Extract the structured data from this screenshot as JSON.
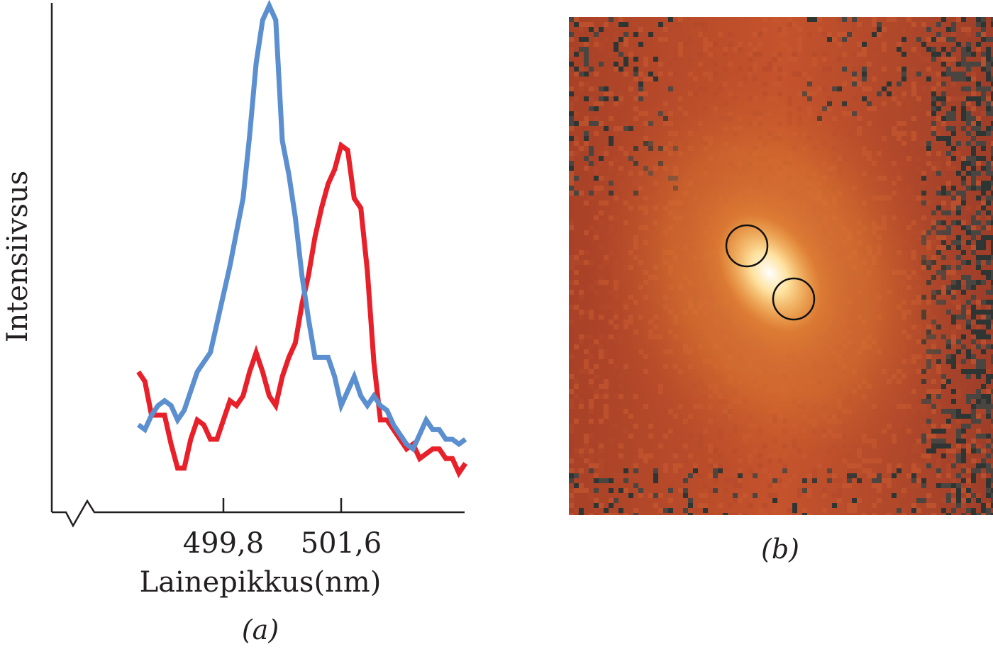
{
  "chart_data": {
    "type": "line",
    "ylabel": "Intensiivsus",
    "xlabel": "Lainepikkus(nm)",
    "x_ticks": [
      "499,8",
      "501,6"
    ],
    "x_tick_values": [
      499.8,
      501.6
    ],
    "xlim": [
      497.9,
      503.7
    ],
    "ylim": [
      0,
      100
    ],
    "grid": false,
    "axis_break": true,
    "series": [
      {
        "color": "#5b8fd0",
        "x": [
          498.5,
          498.6,
          498.7,
          498.8,
          498.9,
          499.0,
          499.1,
          499.2,
          499.3,
          499.4,
          499.5,
          499.6,
          499.7,
          499.8,
          499.9,
          500.0,
          500.1,
          500.2,
          500.3,
          500.4,
          500.5,
          500.6,
          500.7,
          500.8,
          500.9,
          501.0,
          501.1,
          501.2,
          501.3,
          501.4,
          501.5,
          501.6,
          501.7,
          501.8,
          501.9,
          502.0,
          502.1,
          502.2,
          502.3,
          502.4,
          502.5,
          502.6,
          502.7,
          502.8,
          502.9,
          503.0,
          503.1,
          503.2,
          503.3,
          503.4,
          503.5
        ],
        "y": [
          13,
          12,
          15,
          17,
          18,
          17,
          14,
          16,
          20,
          24,
          26,
          28,
          34,
          40,
          46,
          53,
          60,
          73,
          88,
          97,
          100,
          97,
          72,
          65,
          56,
          44,
          35,
          27,
          27,
          27,
          23,
          17,
          20,
          23,
          19,
          17,
          19,
          17,
          16,
          13,
          11,
          9,
          8,
          11,
          14,
          12,
          12,
          10,
          10,
          9,
          10
        ]
      },
      {
        "color": "#e8202a",
        "x": [
          498.5,
          498.6,
          498.7,
          498.8,
          498.9,
          499.0,
          499.1,
          499.2,
          499.3,
          499.4,
          499.5,
          499.6,
          499.7,
          499.8,
          499.9,
          500.0,
          500.1,
          500.2,
          500.3,
          500.4,
          500.5,
          500.6,
          500.7,
          500.8,
          500.9,
          501.0,
          501.1,
          501.2,
          501.3,
          501.4,
          501.5,
          501.6,
          501.7,
          501.8,
          501.9,
          502.0,
          502.1,
          502.2,
          502.3,
          502.4,
          502.5,
          502.6,
          502.7,
          502.8,
          502.9,
          503.0,
          503.1,
          503.2,
          503.3,
          503.4,
          503.5
        ],
        "y": [
          24,
          22,
          15,
          15,
          15,
          9,
          4,
          4,
          10,
          14,
          13,
          10,
          10,
          14,
          18,
          17,
          19,
          24,
          28,
          24,
          19,
          17,
          23,
          27,
          30,
          38,
          44,
          52,
          58,
          63,
          66,
          71,
          70,
          60,
          58,
          45,
          26,
          14,
          14,
          12,
          10,
          8,
          9,
          6,
          7,
          8,
          8,
          6,
          6,
          3,
          5
        ]
      }
    ],
    "panel_a_label": "(a)",
    "panel_b_label": "(b)"
  },
  "image_panel": {
    "description_colors": {
      "background_dark": "#3c3f3c",
      "field": "#b8452a",
      "glow": "#e58a35",
      "core": "#fff3c2"
    },
    "markers": [
      "circle",
      "circle"
    ]
  }
}
